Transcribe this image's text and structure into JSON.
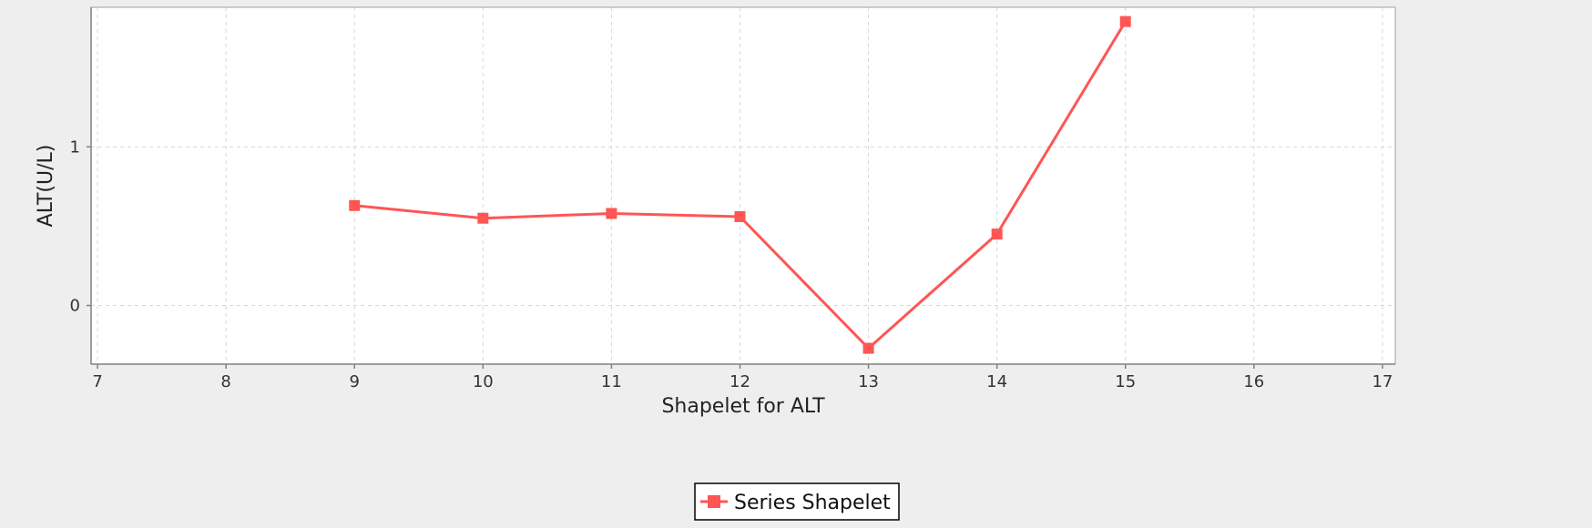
{
  "chart_data": {
    "type": "line",
    "title": "",
    "xlabel": "Shapelet for ALT",
    "ylabel": "ALT(U/L)",
    "xlim": [
      6.95,
      17.1
    ],
    "ylim": [
      -0.37,
      1.88
    ],
    "xticks": [
      7,
      8,
      9,
      10,
      11,
      12,
      13,
      14,
      15,
      16,
      17
    ],
    "yticks": [
      0,
      1
    ],
    "grid": true,
    "legend_position": "bottom-center",
    "series": [
      {
        "name": "Series Shapelet",
        "color": "#ff5555",
        "marker": "square",
        "x": [
          9,
          10,
          11,
          12,
          13,
          14,
          15
        ],
        "y": [
          0.63,
          0.55,
          0.58,
          0.56,
          -0.27,
          0.45,
          1.79
        ]
      }
    ]
  }
}
